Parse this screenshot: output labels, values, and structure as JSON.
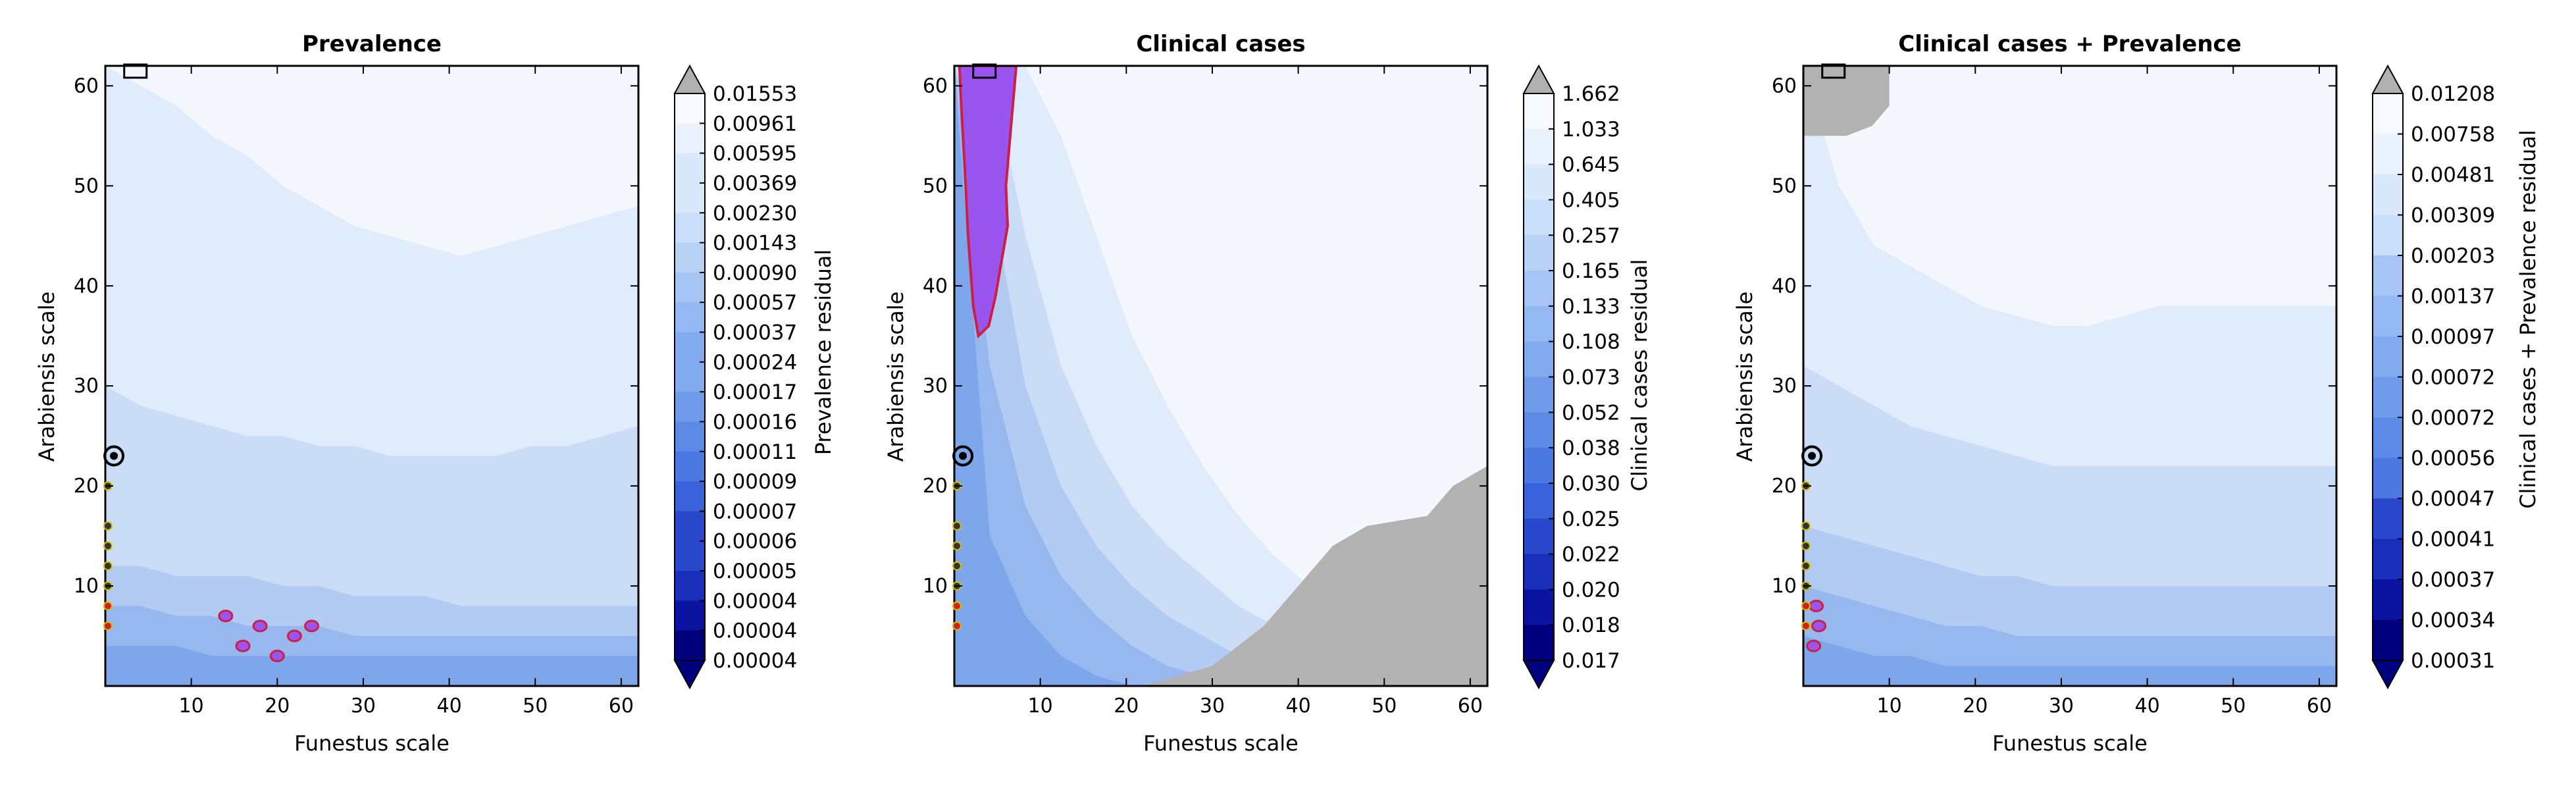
{
  "chart_data": [
    {
      "type": "heatmap",
      "title": "Prevalence",
      "xlabel": "Funestus scale",
      "ylabel": "Arabiensis scale",
      "colorbar_label": "Prevalence residual",
      "xlim": [
        0,
        62
      ],
      "ylim": [
        0,
        62
      ],
      "x_ticks": [
        10,
        20,
        30,
        40,
        50,
        60
      ],
      "y_ticks": [
        10,
        20,
        30,
        40,
        50,
        60
      ],
      "colorbar_levels": [
        "0.01553",
        "0.00961",
        "0.00595",
        "0.00369",
        "0.00230",
        "0.00143",
        "0.00090",
        "0.00057",
        "0.00037",
        "0.00024",
        "0.00017",
        "0.00016",
        "0.00011",
        "0.00009",
        "0.00007",
        "0.00006",
        "0.00005",
        "0.00004",
        "0.00004",
        "0.00004"
      ],
      "contour_bands": [
        [
          62,
          60,
          58,
          55,
          53,
          50,
          48,
          46,
          45,
          44,
          43,
          44,
          45,
          46,
          47,
          48
        ],
        [
          30,
          28,
          27,
          26,
          25,
          25,
          24,
          24,
          23,
          23,
          23,
          23,
          24,
          24,
          25,
          26
        ],
        [
          12,
          12,
          11,
          11,
          11,
          10,
          10,
          9,
          9,
          9,
          8,
          8,
          8,
          8,
          8,
          8
        ],
        [
          8,
          8,
          7,
          7,
          6,
          6,
          6,
          5,
          5,
          5,
          5,
          5,
          5,
          5,
          5,
          5
        ],
        [
          4,
          4,
          4,
          3,
          3,
          3,
          3,
          3,
          3,
          3,
          3,
          3,
          3,
          3,
          3,
          3
        ]
      ],
      "gray_region": []
    },
    {
      "type": "heatmap",
      "title": "Clinical cases",
      "xlabel": "Funestus scale",
      "ylabel": "Arabiensis scale",
      "colorbar_label": "Clinical cases residual",
      "xlim": [
        0,
        62
      ],
      "ylim": [
        0,
        62
      ],
      "x_ticks": [
        10,
        20,
        30,
        40,
        50,
        60
      ],
      "y_ticks": [
        10,
        20,
        30,
        40,
        50,
        60
      ],
      "colorbar_levels": [
        "1.662",
        "1.033",
        "0.645",
        "0.405",
        "0.257",
        "0.165",
        "0.133",
        "0.108",
        "0.073",
        "0.052",
        "0.038",
        "0.030",
        "0.025",
        "0.022",
        "0.020",
        "0.018",
        "0.017"
      ],
      "contour_bands": [
        [
          62,
          62,
          62,
          55,
          45,
          35,
          28,
          22,
          17,
          13,
          10,
          7,
          5,
          3,
          2,
          1
        ],
        [
          62,
          62,
          45,
          32,
          24,
          18,
          14,
          11,
          8,
          6,
          4,
          3,
          2,
          1,
          1,
          0
        ],
        [
          62,
          50,
          30,
          20,
          14,
          10,
          7,
          5,
          3,
          2,
          1,
          1,
          0,
          0,
          0,
          0
        ],
        [
          62,
          32,
          18,
          11,
          7,
          4,
          2,
          1,
          0,
          0,
          0,
          0,
          0,
          0,
          0,
          0
        ],
        [
          62,
          15,
          7,
          3,
          1,
          0,
          0,
          0,
          0,
          0,
          0,
          0,
          0,
          0,
          0,
          0
        ]
      ],
      "gray_region": [
        [
          62,
          0
        ],
        [
          62,
          22
        ],
        [
          58,
          20
        ],
        [
          55,
          17
        ],
        [
          48,
          16
        ],
        [
          44,
          14
        ],
        [
          40,
          10
        ],
        [
          36,
          6
        ],
        [
          30,
          2
        ],
        [
          26,
          1
        ],
        [
          22,
          0
        ]
      ]
    },
    {
      "type": "heatmap",
      "title": "Clinical cases + Prevalence",
      "xlabel": "Funestus scale",
      "ylabel": "Arabiensis scale",
      "colorbar_label": "Clinical cases + Prevalence residual",
      "xlim": [
        0,
        62
      ],
      "ylim": [
        0,
        62
      ],
      "x_ticks": [
        10,
        20,
        30,
        40,
        50,
        60
      ],
      "y_ticks": [
        10,
        20,
        30,
        40,
        50,
        60
      ],
      "colorbar_levels": [
        "0.01208",
        "0.00758",
        "0.00481",
        "0.00309",
        "0.00203",
        "0.00137",
        "0.00097",
        "0.00072",
        "0.00072",
        "0.00056",
        "0.00047",
        "0.00041",
        "0.00037",
        "0.00034",
        "0.00031"
      ],
      "contour_bands": [
        [
          62,
          50,
          44,
          42,
          40,
          38,
          37,
          36,
          36,
          37,
          38,
          38,
          38,
          38,
          38,
          38
        ],
        [
          32,
          30,
          28,
          26,
          25,
          24,
          23,
          22,
          22,
          22,
          22,
          22,
          22,
          22,
          22,
          22
        ],
        [
          16,
          15,
          14,
          13,
          12,
          11,
          11,
          10,
          10,
          10,
          10,
          10,
          10,
          10,
          10,
          10
        ],
        [
          10,
          9,
          8,
          7,
          6,
          6,
          5,
          5,
          5,
          5,
          5,
          5,
          5,
          5,
          5,
          5
        ],
        [
          5,
          4,
          3,
          3,
          2,
          2,
          2,
          2,
          2,
          2,
          2,
          2,
          2,
          2,
          2,
          2
        ]
      ],
      "gray_region": [
        [
          0,
          62
        ],
        [
          10,
          62
        ],
        [
          10,
          58
        ],
        [
          8,
          56
        ],
        [
          5,
          55
        ],
        [
          3,
          55
        ],
        [
          0,
          55
        ]
      ]
    }
  ],
  "colors": {
    "band_colors": [
      "#f4f8fe",
      "#e0ebfb",
      "#cbdcf7",
      "#b2cbf2",
      "#97b8ee",
      "#7ea6ea"
    ],
    "colorbar_colors": [
      "#00007e",
      "#0a14a0",
      "#1a2fb9",
      "#2a48cc",
      "#3a62da",
      "#4c78e2",
      "#5e8ae7",
      "#709beb",
      "#82aaee",
      "#94b8f1",
      "#a6c5f4",
      "#b8d2f6",
      "#c9def9",
      "#d9e8fb",
      "#e9f1fd",
      "#f6f9ff"
    ],
    "gray": "#b2b2b2",
    "contour_fill": "#9a55ee",
    "contour_line": "#cc1f44"
  }
}
